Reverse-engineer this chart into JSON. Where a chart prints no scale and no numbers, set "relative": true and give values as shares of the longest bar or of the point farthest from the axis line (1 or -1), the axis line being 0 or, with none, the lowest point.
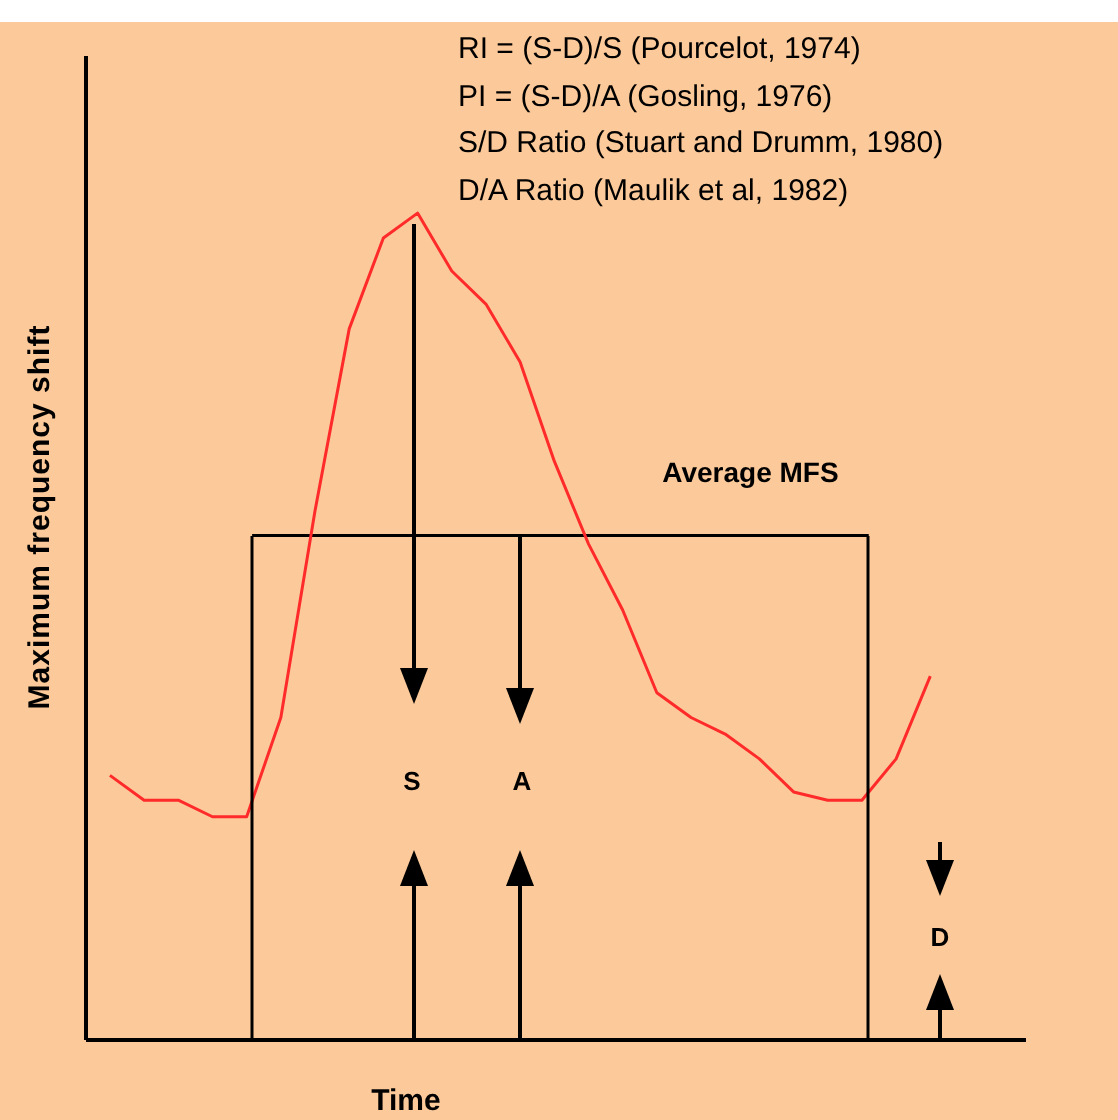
{
  "chart_data": {
    "type": "line",
    "relative": true,
    "xlabel": "Time",
    "ylabel": "Maximum frequency shift",
    "categories": [
      null,
      null,
      null,
      null,
      null,
      null,
      null,
      null,
      null,
      null,
      null,
      null,
      null,
      null,
      null,
      null,
      null,
      null,
      null,
      null,
      null,
      null,
      null,
      null,
      null
    ],
    "series": [
      {
        "color": "#ff2a2a",
        "values": [
          0.32,
          0.29,
          0.29,
          0.27,
          0.27,
          0.39,
          0.64,
          0.86,
          0.97,
          1.0,
          0.93,
          0.89,
          0.82,
          0.7,
          0.6,
          0.52,
          0.42,
          0.39,
          0.37,
          0.34,
          0.3,
          0.29,
          0.29,
          0.34,
          0.44
        ]
      }
    ],
    "ref_lines": [
      {
        "axis": "y",
        "value": 0.61,
        "label": "Average MFS",
        "color": "#000000"
      }
    ],
    "annotations": [
      "RI = (S-D)/S (Pourcelot, 1974)",
      "PI = (S-D)/A (Gosling, 1976)",
      "S/D Ratio (Stuart and Drumm, 1980)",
      "D/A Ratio (Maulik et al, 1982)",
      "S",
      "A",
      "D"
    ],
    "grid": false,
    "legend": false,
    "marker": "none",
    "line_style": "solid"
  }
}
